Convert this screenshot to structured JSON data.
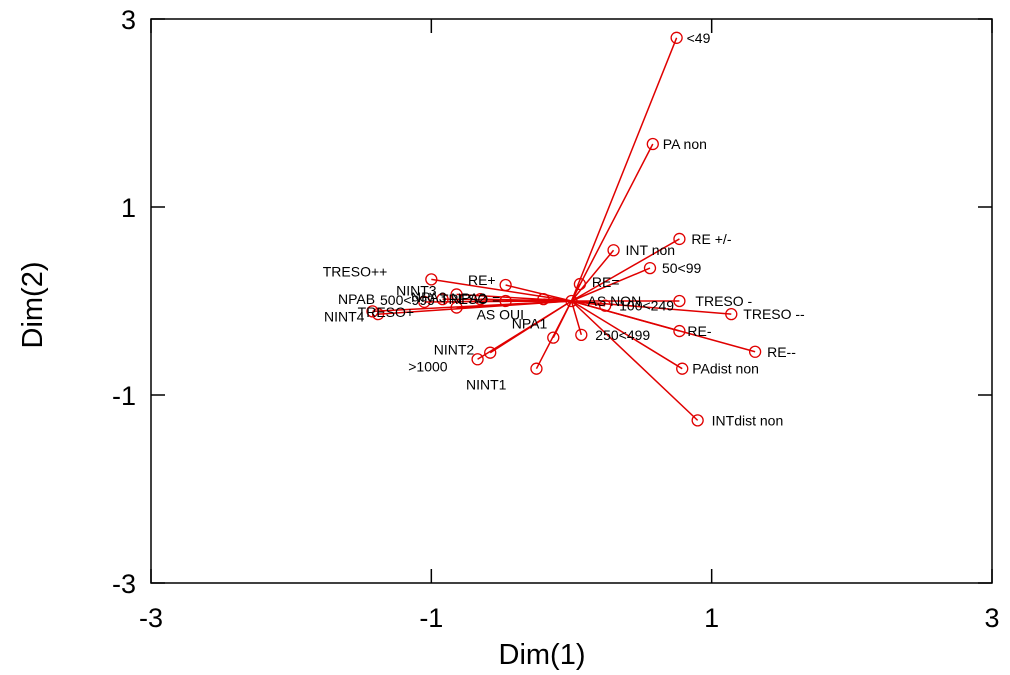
{
  "chart_data": {
    "type": "scatter",
    "title": "",
    "xlabel": "Dim(1)",
    "ylabel": "Dim(2)",
    "xlim": [
      -3,
      3
    ],
    "ylim": [
      -3,
      3
    ],
    "xticks": [
      -3,
      -1,
      1,
      3
    ],
    "yticks": [
      -3,
      -1,
      1,
      3
    ],
    "xtick_labels": [
      "-3",
      "-1",
      "1",
      "3"
    ],
    "ytick_labels": [
      "-3",
      "-1",
      "1",
      "3"
    ],
    "origin": [
      0,
      0
    ],
    "grid": false,
    "series_color": "#e00000",
    "points": [
      {
        "label": "<49",
        "x": 0.75,
        "y": 2.8
      },
      {
        "label": "PA non",
        "x": 0.58,
        "y": 1.67
      },
      {
        "label": "RE +/-",
        "x": 0.77,
        "y": 0.66
      },
      {
        "label": "INT non",
        "x": 0.3,
        "y": 0.54
      },
      {
        "label": "50<99",
        "x": 0.56,
        "y": 0.35
      },
      {
        "label": "RE=",
        "x": 0.06,
        "y": 0.18
      },
      {
        "label": "AS NON",
        "x": 0.0,
        "y": 0.0
      },
      {
        "label": "100<249",
        "x": 0.24,
        "y": -0.05
      },
      {
        "label": "TRESO -",
        "x": 0.77,
        "y": 0.0
      },
      {
        "label": "TRESO --",
        "x": 1.14,
        "y": -0.14
      },
      {
        "label": "RE-",
        "x": 0.77,
        "y": -0.32
      },
      {
        "label": "RE--",
        "x": 1.31,
        "y": -0.54
      },
      {
        "label": "PAdist non",
        "x": 0.79,
        "y": -0.72
      },
      {
        "label": "INTdist non",
        "x": 0.9,
        "y": -1.27
      },
      {
        "label": "250<499",
        "x": 0.07,
        "y": -0.36
      },
      {
        "label": "NPA1",
        "x": -0.13,
        "y": -0.39
      },
      {
        "label": "NINT1",
        "x": -0.25,
        "y": -0.72
      },
      {
        "label": "NINT2",
        "x": -0.58,
        "y": -0.55
      },
      {
        "label": ">1000",
        "x": -0.67,
        "y": -0.62
      },
      {
        "label": "TRESO++",
        "x": -1.0,
        "y": 0.23
      },
      {
        "label": "RE+",
        "x": -0.47,
        "y": 0.17
      },
      {
        "label": "NINT3",
        "x": -0.82,
        "y": 0.07
      },
      {
        "label": "NPA2",
        "x": -0.92,
        "y": 0.02
      },
      {
        "label": "AS OUI",
        "x": -0.82,
        "y": -0.07
      },
      {
        "label": "TRESO+",
        "x": -1.38,
        "y": -0.14
      },
      {
        "label": "NINT4",
        "x": -1.42,
        "y": -0.11
      },
      {
        "label": "",
        "x": -0.47,
        "y": 0.0
      },
      {
        "label": "",
        "x": -0.65,
        "y": 0.02
      },
      {
        "label": "",
        "x": -1.05,
        "y": -0.01
      },
      {
        "label": "",
        "x": -0.2,
        "y": 0.02
      }
    ],
    "overlap_text_1": "NPAB",
    "overlap_text_2": "500<999",
    "overlap_text_3": "NPA3",
    "overlap_text_4": "TRESO ="
  }
}
